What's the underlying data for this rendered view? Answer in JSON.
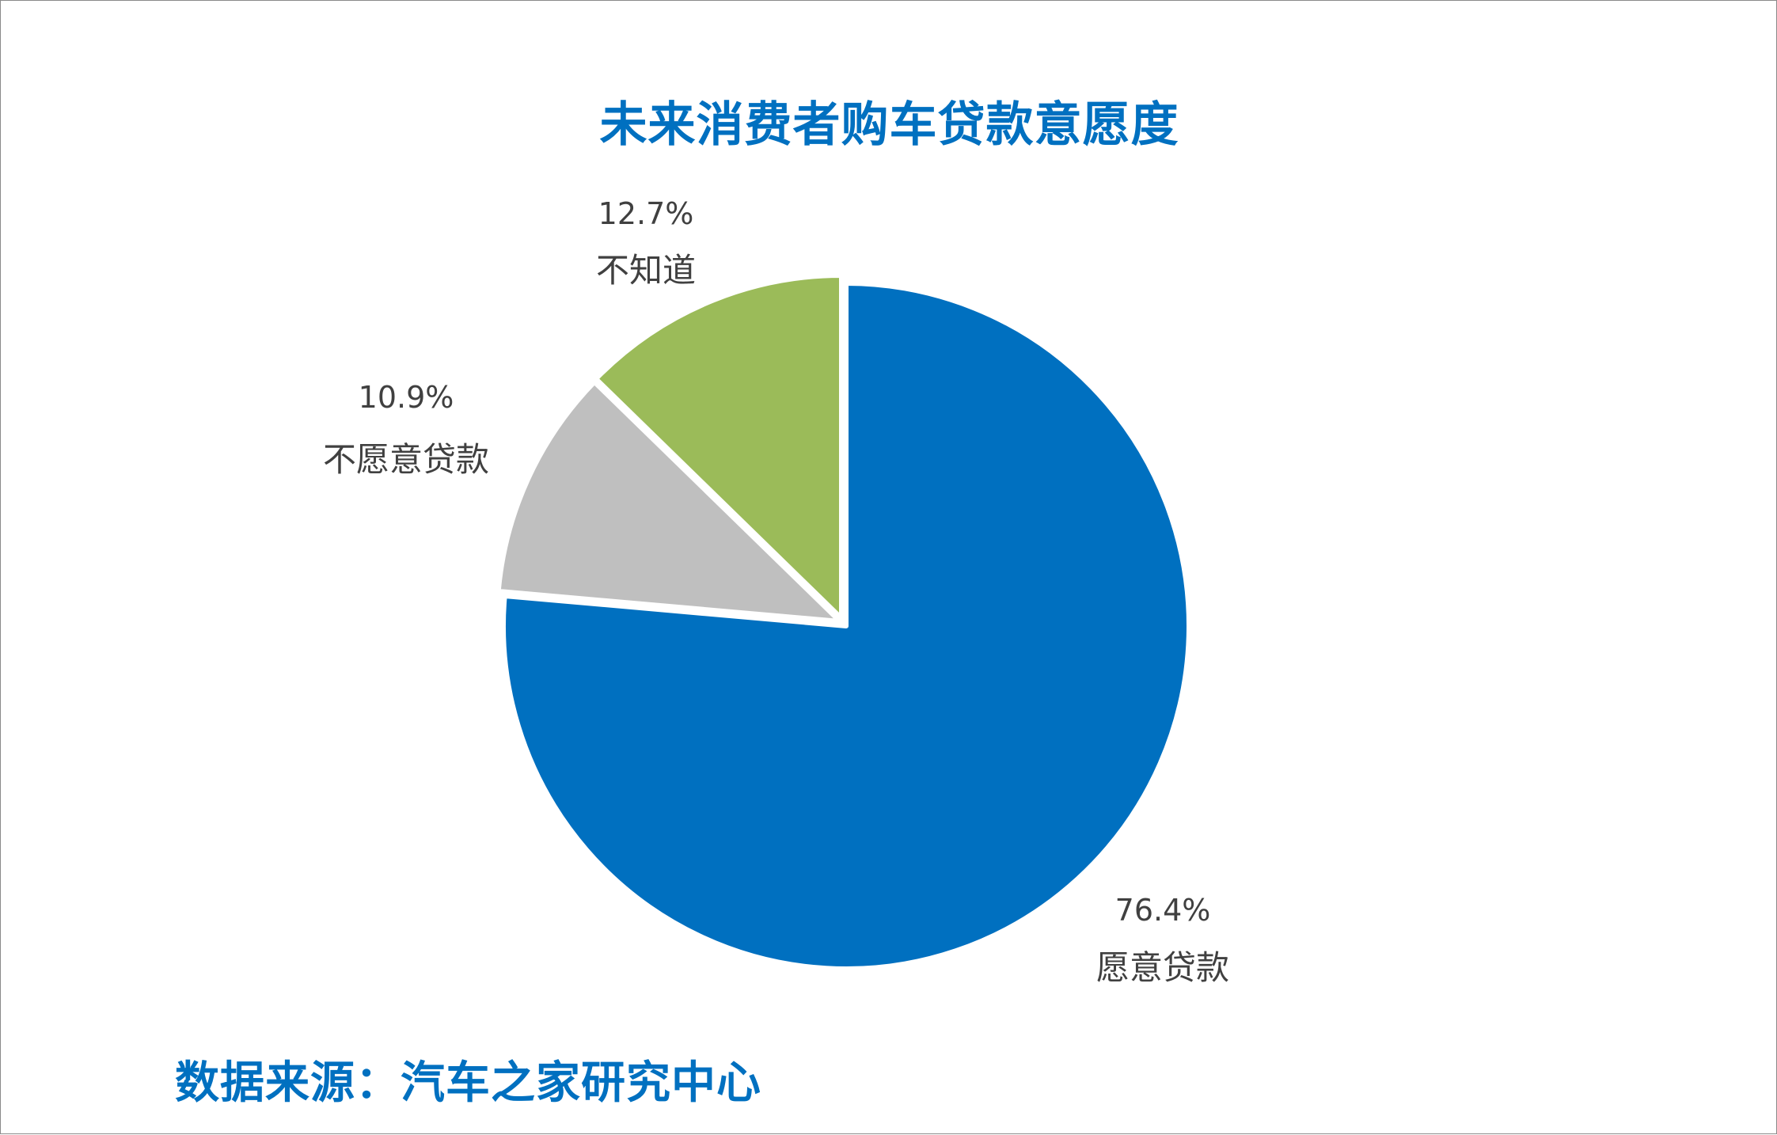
{
  "title": "未来消费者购车贷款意愿度",
  "source": "数据来源：汽车之家研究中心",
  "chart_data": {
    "type": "pie",
    "title": "未来消费者购车贷款意愿度",
    "start_angle_deg": 0,
    "direction": "clockwise",
    "legend": "none",
    "slices": [
      {
        "label": "愿意贷款",
        "value": 76.4,
        "display": "76.4%",
        "color": "#0070c0"
      },
      {
        "label": "不愿意贷款",
        "value": 10.9,
        "display": "10.9%",
        "color": "#bfbfbf"
      },
      {
        "label": "不知道",
        "value": 12.7,
        "display": "12.7%",
        "color": "#9bbb59"
      }
    ]
  }
}
